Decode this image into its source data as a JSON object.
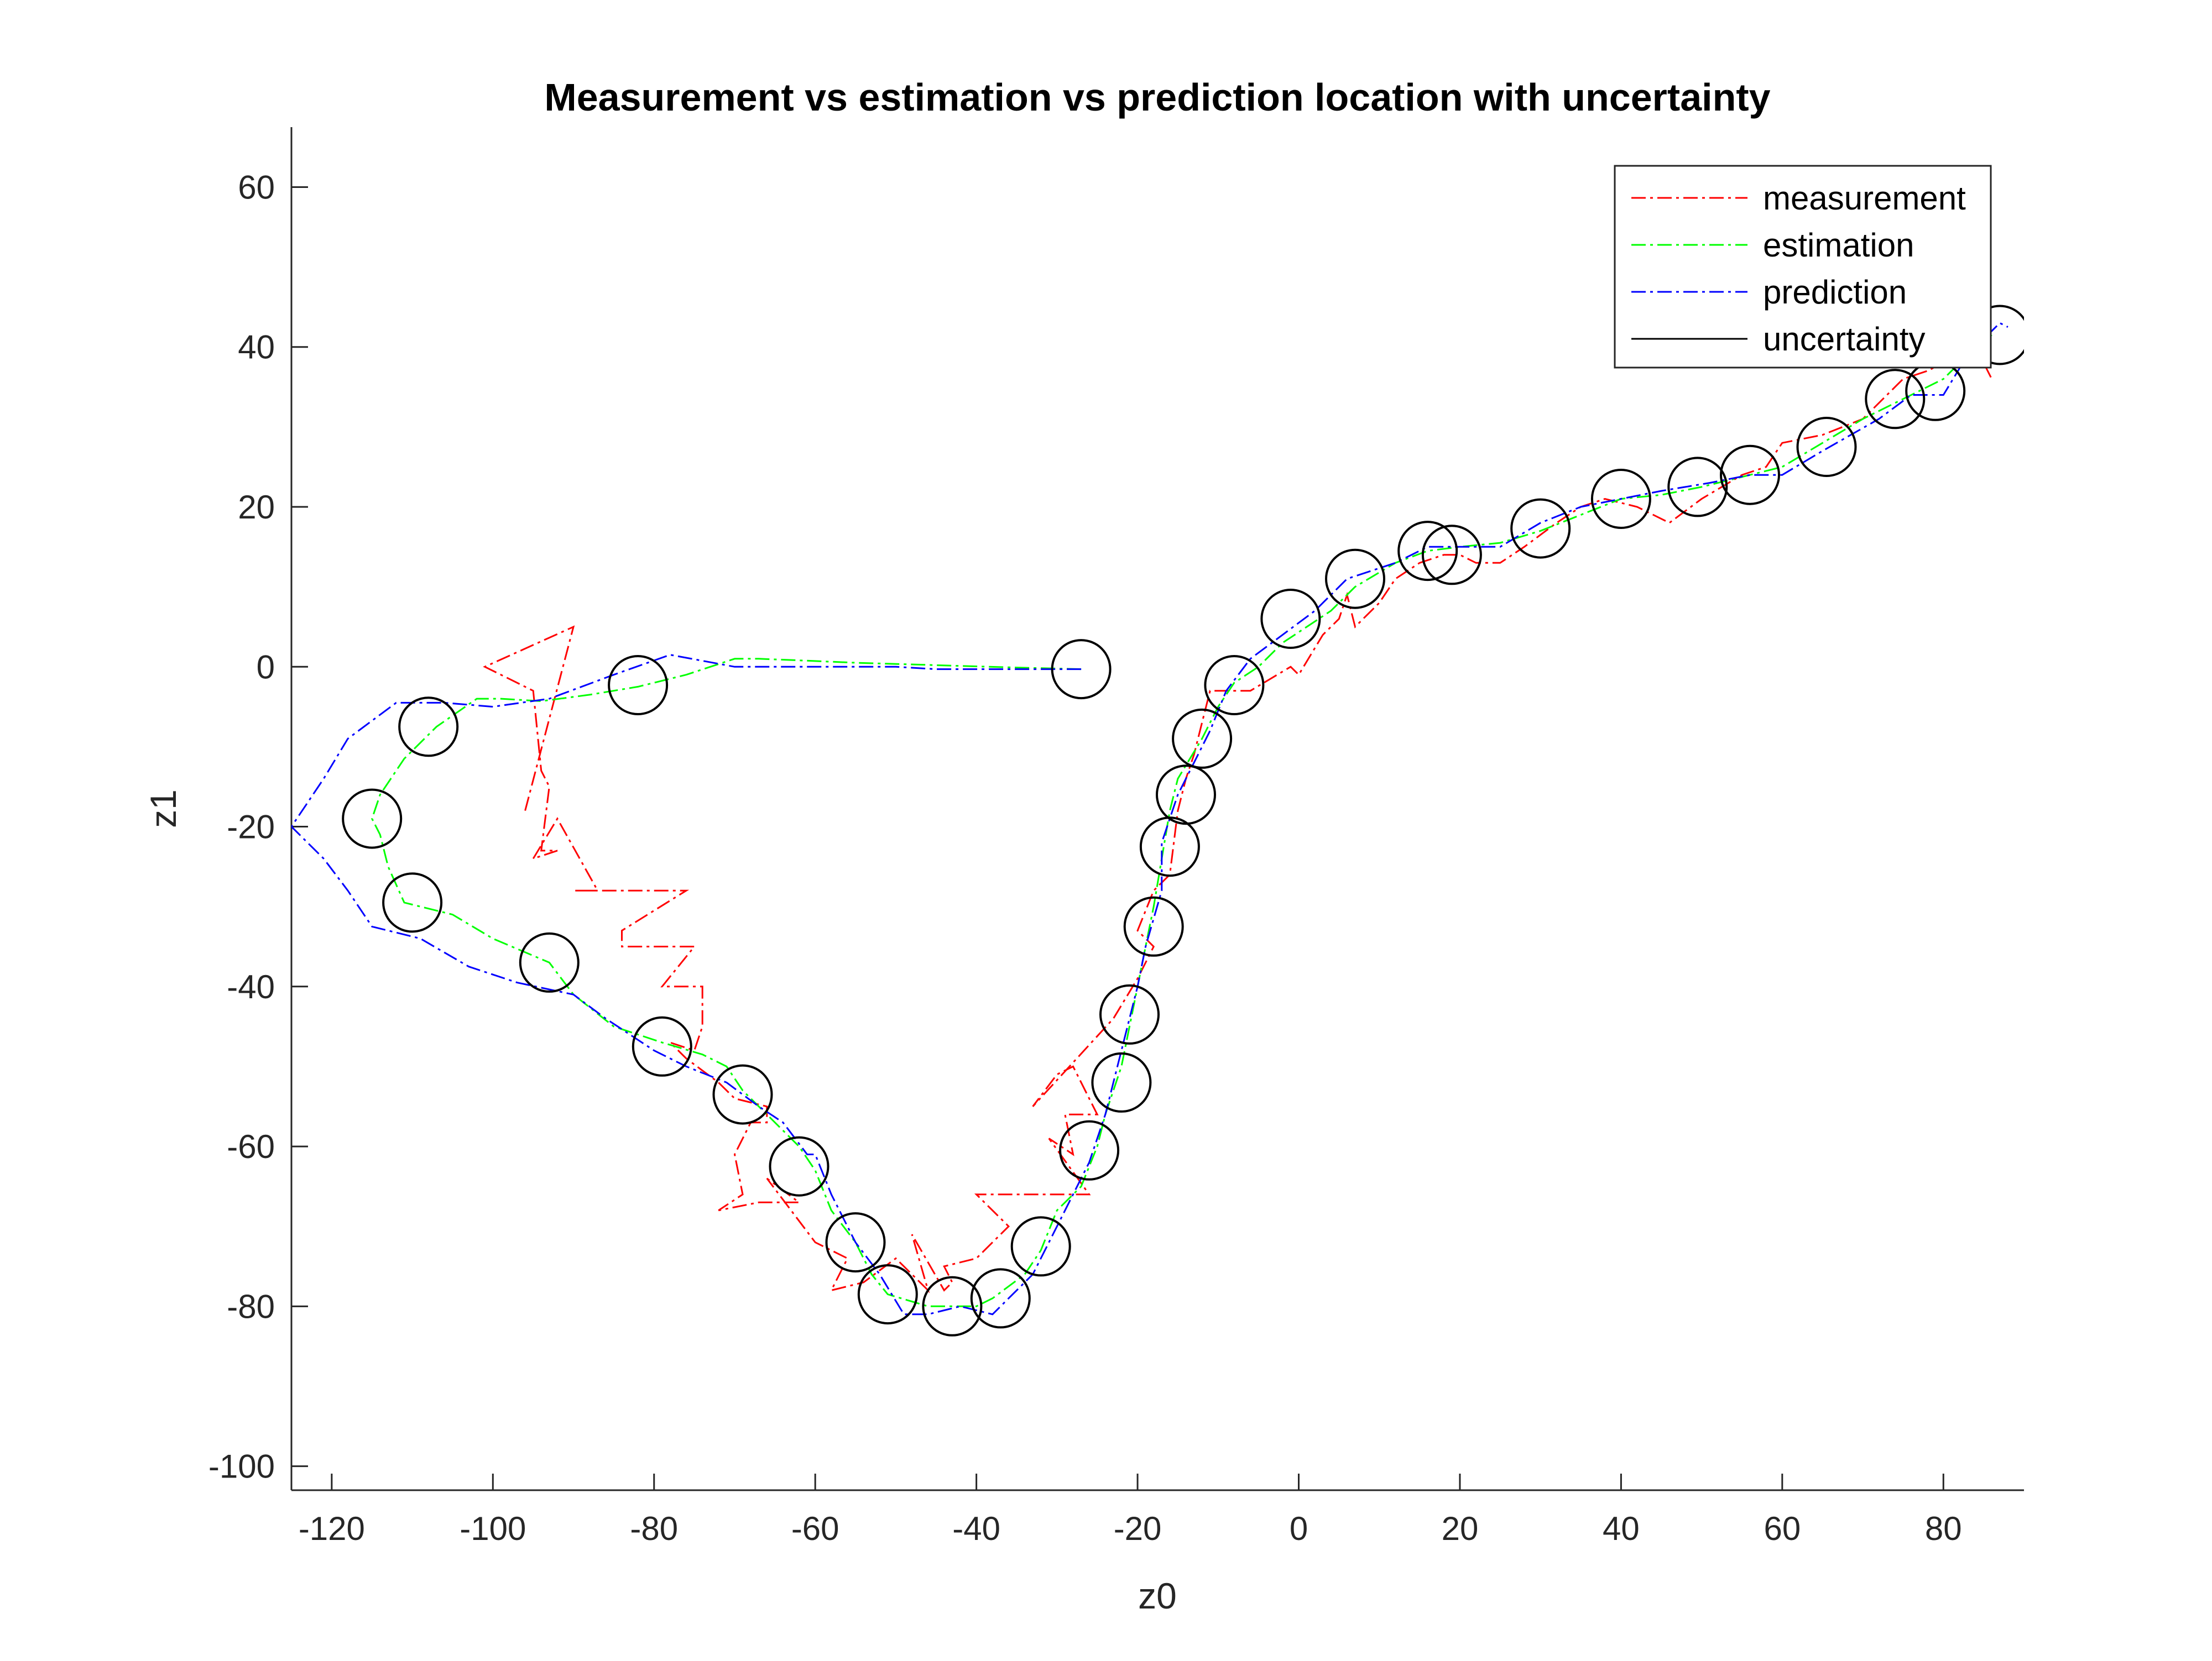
{
  "chart_data": {
    "type": "line",
    "title": "Measurement vs estimation vs prediction location with uncertainty",
    "xlabel": "z0",
    "ylabel": "z1",
    "xlim": [
      -125,
      90
    ],
    "ylim": [
      -103,
      67.5
    ],
    "xticks": [
      -120,
      -100,
      -80,
      -60,
      -40,
      -20,
      0,
      20,
      40,
      60,
      80
    ],
    "yticks": [
      -100,
      -80,
      -60,
      -40,
      -20,
      0,
      20,
      40,
      60
    ],
    "grid": false,
    "legend_position": "top-right",
    "series": [
      {
        "name": "measurement",
        "color": "#ff0000",
        "style": "dash-dot",
        "points": [
          [
            -96,
            -18
          ],
          [
            -90,
            5
          ],
          [
            -101,
            0
          ],
          [
            -95,
            -3
          ],
          [
            -94,
            -13
          ],
          [
            -93,
            -15
          ],
          [
            -94,
            -23
          ],
          [
            -92,
            -23
          ],
          [
            -95,
            -24
          ],
          [
            -92,
            -19
          ],
          [
            -87,
            -28
          ],
          [
            -90,
            -28
          ],
          [
            -84,
            -28
          ],
          [
            -76,
            -28
          ],
          [
            -84,
            -33
          ],
          [
            -84,
            -35
          ],
          [
            -75,
            -35
          ],
          [
            -79,
            -40
          ],
          [
            -74,
            -40
          ],
          [
            -74,
            -45
          ],
          [
            -75,
            -48
          ],
          [
            -78,
            -47
          ],
          [
            -76,
            -49
          ],
          [
            -72,
            -52
          ],
          [
            -70,
            -54
          ],
          [
            -66,
            -55
          ],
          [
            -66,
            -57
          ],
          [
            -68,
            -57
          ],
          [
            -70,
            -61
          ],
          [
            -69,
            -66
          ],
          [
            -72,
            -68
          ],
          [
            -67,
            -67
          ],
          [
            -62,
            -67
          ],
          [
            -66,
            -64
          ],
          [
            -60,
            -72
          ],
          [
            -56,
            -74
          ],
          [
            -58,
            -78
          ],
          [
            -54,
            -77
          ],
          [
            -50,
            -74
          ],
          [
            -46,
            -78
          ],
          [
            -48,
            -71
          ],
          [
            -44,
            -78
          ],
          [
            -43,
            -77
          ],
          [
            -44,
            -75
          ],
          [
            -40,
            -74
          ],
          [
            -36,
            -70
          ],
          [
            -40,
            -66
          ],
          [
            -30,
            -66
          ],
          [
            -26,
            -66
          ],
          [
            -31,
            -59
          ],
          [
            -28,
            -61
          ],
          [
            -29,
            -56
          ],
          [
            -25,
            -56
          ],
          [
            -26,
            -54
          ],
          [
            -28,
            -50
          ],
          [
            -30,
            -51
          ],
          [
            -33,
            -55
          ],
          [
            -23,
            -44
          ],
          [
            -20,
            -39
          ],
          [
            -18,
            -35
          ],
          [
            -20,
            -33
          ],
          [
            -18,
            -28
          ],
          [
            -16,
            -26
          ],
          [
            -15,
            -18
          ],
          [
            -14,
            -14
          ],
          [
            -13,
            -11
          ],
          [
            -12,
            -7
          ],
          [
            -11,
            -3
          ],
          [
            -6,
            -3
          ],
          [
            -1,
            0
          ],
          [
            0,
            -1
          ],
          [
            3,
            4
          ],
          [
            5,
            6
          ],
          [
            6,
            9
          ],
          [
            7,
            5
          ],
          [
            10,
            8
          ],
          [
            12,
            11
          ],
          [
            15,
            13
          ],
          [
            18,
            14
          ],
          [
            20,
            14
          ],
          [
            22,
            13
          ],
          [
            25,
            13
          ],
          [
            28,
            15
          ],
          [
            32,
            18
          ],
          [
            35,
            20
          ],
          [
            38,
            21
          ],
          [
            42,
            20
          ],
          [
            46,
            18
          ],
          [
            50,
            21
          ],
          [
            55,
            24
          ],
          [
            58,
            25
          ],
          [
            60,
            28
          ],
          [
            65,
            29
          ],
          [
            70,
            31
          ],
          [
            75,
            36
          ],
          [
            78,
            37
          ],
          [
            82,
            39
          ],
          [
            85,
            38
          ],
          [
            86,
            36
          ]
        ]
      },
      {
        "name": "estimation",
        "color": "#00ff00",
        "style": "dash-dot",
        "points": [
          [
            -27,
            -0.3
          ],
          [
            -35,
            -0.1
          ],
          [
            -45,
            0.2
          ],
          [
            -55,
            0.5
          ],
          [
            -62,
            0.8
          ],
          [
            -67,
            1
          ],
          [
            -70,
            1
          ],
          [
            -76,
            -1
          ],
          [
            -82,
            -2.5
          ],
          [
            -88,
            -3.5
          ],
          [
            -94,
            -4.3
          ],
          [
            -99,
            -4
          ],
          [
            -102,
            -4
          ],
          [
            -107,
            -7.5
          ],
          [
            -111,
            -11.5
          ],
          [
            -114,
            -16
          ],
          [
            -115,
            -19
          ],
          [
            -114,
            -21
          ],
          [
            -113,
            -25
          ],
          [
            -111,
            -29.5
          ],
          [
            -105,
            -31
          ],
          [
            -100,
            -34
          ],
          [
            -93,
            -37
          ],
          [
            -90,
            -41
          ],
          [
            -85,
            -45
          ],
          [
            -79,
            -47
          ],
          [
            -74,
            -48.5
          ],
          [
            -71,
            -50
          ],
          [
            -69,
            -53
          ],
          [
            -65,
            -57
          ],
          [
            -62,
            -60
          ],
          [
            -60,
            -63
          ],
          [
            -58,
            -68
          ],
          [
            -55,
            -72
          ],
          [
            -53,
            -76
          ],
          [
            -51,
            -78.5
          ],
          [
            -46,
            -80
          ],
          [
            -43,
            -80
          ],
          [
            -40,
            -80
          ],
          [
            -38,
            -79
          ],
          [
            -34,
            -76
          ],
          [
            -32,
            -73
          ],
          [
            -30,
            -68
          ],
          [
            -27,
            -65
          ],
          [
            -25,
            -60
          ],
          [
            -24,
            -56
          ],
          [
            -22,
            -50
          ],
          [
            -21,
            -45
          ],
          [
            -20,
            -40
          ],
          [
            -19,
            -35
          ],
          [
            -18,
            -30
          ],
          [
            -17,
            -24
          ],
          [
            -16,
            -18
          ],
          [
            -15,
            -14
          ],
          [
            -12,
            -9
          ],
          [
            -10,
            -5
          ],
          [
            -8,
            -2
          ],
          [
            -5,
            0
          ],
          [
            -2,
            3
          ],
          [
            1,
            5
          ],
          [
            4,
            7
          ],
          [
            7,
            10
          ],
          [
            12,
            13
          ],
          [
            16,
            14.5
          ],
          [
            20,
            15
          ],
          [
            25,
            15.5
          ],
          [
            30,
            17
          ],
          [
            35,
            19
          ],
          [
            40,
            21
          ],
          [
            45,
            21.5
          ],
          [
            50,
            22.5
          ],
          [
            56,
            24
          ],
          [
            60,
            25
          ],
          [
            65,
            28
          ],
          [
            70,
            31
          ],
          [
            75,
            33.5
          ],
          [
            80,
            36
          ],
          [
            83,
            39
          ],
          [
            86,
            41.5
          ]
        ]
      },
      {
        "name": "prediction",
        "color": "#0000ff",
        "style": "dash-dot",
        "points": [
          [
            -27,
            -0.3
          ],
          [
            -35,
            -0.3
          ],
          [
            -45,
            -0.3
          ],
          [
            -50,
            0
          ],
          [
            -57,
            0
          ],
          [
            -70,
            0
          ],
          [
            -78,
            1.5
          ],
          [
            -85,
            -1
          ],
          [
            -93,
            -4
          ],
          [
            -100,
            -5
          ],
          [
            -106,
            -4.5
          ],
          [
            -112,
            -4.5
          ],
          [
            -118,
            -9
          ],
          [
            -121,
            -14
          ],
          [
            -125,
            -20
          ],
          [
            -121,
            -24
          ],
          [
            -118,
            -28
          ],
          [
            -115,
            -32.5
          ],
          [
            -109,
            -34
          ],
          [
            -103,
            -37.5
          ],
          [
            -97,
            -39.5
          ],
          [
            -90,
            -41
          ],
          [
            -86,
            -44
          ],
          [
            -80,
            -48
          ],
          [
            -76,
            -50
          ],
          [
            -71,
            -52
          ],
          [
            -67,
            -55
          ],
          [
            -64,
            -57
          ],
          [
            -61,
            -61
          ],
          [
            -60,
            -61
          ],
          [
            -58,
            -66
          ],
          [
            -55,
            -72
          ],
          [
            -52,
            -76
          ],
          [
            -49,
            -81
          ],
          [
            -46,
            -81
          ],
          [
            -42,
            -80
          ],
          [
            -38,
            -81
          ],
          [
            -33,
            -76
          ],
          [
            -31,
            -72
          ],
          [
            -29,
            -68
          ],
          [
            -26,
            -62
          ],
          [
            -24,
            -56
          ],
          [
            -22,
            -48
          ],
          [
            -20,
            -40
          ],
          [
            -19,
            -35
          ],
          [
            -17,
            -28
          ],
          [
            -17,
            -22
          ],
          [
            -15,
            -16
          ],
          [
            -13,
            -12
          ],
          [
            -11,
            -8
          ],
          [
            -9,
            -3
          ],
          [
            -6,
            1
          ],
          [
            -2,
            4
          ],
          [
            2,
            7
          ],
          [
            6,
            11
          ],
          [
            12,
            13
          ],
          [
            16,
            15
          ],
          [
            20,
            15
          ],
          [
            25,
            15
          ],
          [
            30,
            18
          ],
          [
            35,
            20
          ],
          [
            40,
            21
          ],
          [
            45,
            22
          ],
          [
            51,
            23
          ],
          [
            56,
            24
          ],
          [
            60,
            24
          ],
          [
            65,
            27
          ],
          [
            72,
            31
          ],
          [
            76,
            34
          ],
          [
            80,
            34
          ],
          [
            83,
            39
          ],
          [
            85,
            41
          ],
          [
            87,
            43
          ],
          [
            88,
            42.5
          ]
        ]
      }
    ],
    "uncertainty": {
      "name": "uncertainty",
      "color": "#000000",
      "radius": 3.6,
      "centers": [
        [
          -27,
          -0.3
        ],
        [
          -82,
          -2.3
        ],
        [
          -108,
          -7.5
        ],
        [
          -115,
          -19
        ],
        [
          -110,
          -29.5
        ],
        [
          -93,
          -37
        ],
        [
          -79,
          -47.5
        ],
        [
          -69,
          -53.5
        ],
        [
          -62,
          -62.5
        ],
        [
          -55,
          -72
        ],
        [
          -51,
          -78.5
        ],
        [
          -43,
          -80
        ],
        [
          -37,
          -79
        ],
        [
          -32,
          -72.5
        ],
        [
          -26,
          -60.5
        ],
        [
          -22,
          -52
        ],
        [
          -21,
          -43.5
        ],
        [
          -18,
          -32.5
        ],
        [
          -16,
          -22.5
        ],
        [
          -14,
          -16
        ],
        [
          -12,
          -9
        ],
        [
          -8,
          -2.3
        ],
        [
          -1,
          6
        ],
        [
          7,
          11
        ],
        [
          16,
          14.5
        ],
        [
          19,
          14
        ],
        [
          30,
          17.3
        ],
        [
          40,
          21
        ],
        [
          49.5,
          22.5
        ],
        [
          56,
          24
        ],
        [
          65.5,
          27.5
        ],
        [
          74,
          33.5
        ],
        [
          79,
          34.5
        ],
        [
          87,
          41.5
        ]
      ]
    }
  }
}
